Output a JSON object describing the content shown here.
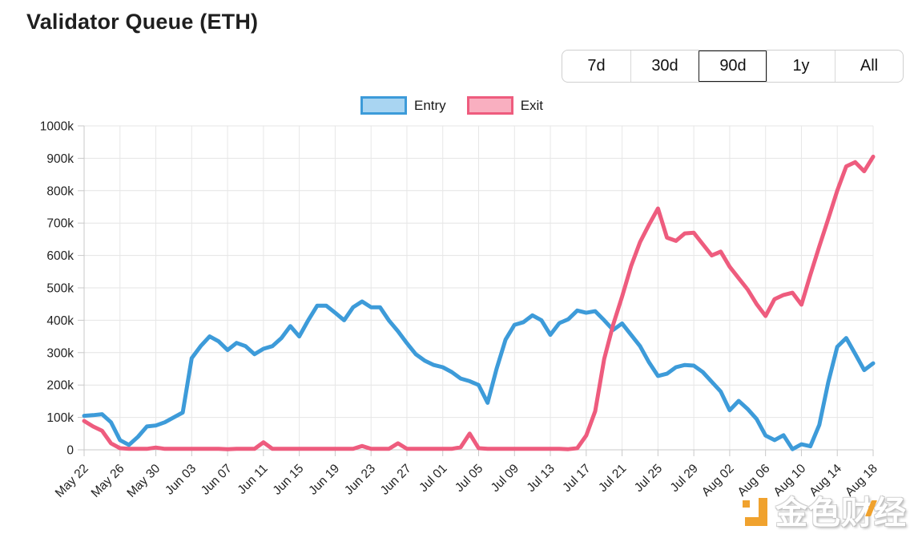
{
  "header": {
    "title": "Validator Queue (ETH)"
  },
  "range_buttons": [
    {
      "label": "7d",
      "selected": false
    },
    {
      "label": "30d",
      "selected": false
    },
    {
      "label": "90d",
      "selected": true
    },
    {
      "label": "1y",
      "selected": false
    },
    {
      "label": "All",
      "selected": false
    }
  ],
  "legend": [
    {
      "label": "Entry",
      "line_color": "#3d9bd9",
      "fill_color": "#a9d5f2"
    },
    {
      "label": "Exit",
      "line_color": "#ee5c7e",
      "fill_color": "#f9afc0"
    }
  ],
  "watermark": {
    "text": "金色财经",
    "logo": "jinse-logo-icon",
    "accent_color": "#f0a22e"
  },
  "chart_data": {
    "type": "line",
    "title": "Validator Queue (ETH)",
    "grid": true,
    "legend_position": "top-center",
    "ylim": [
      0,
      1000
    ],
    "y_tick_values": [
      0,
      100,
      200,
      300,
      400,
      500,
      600,
      700,
      800,
      900,
      1000
    ],
    "y_tick_labels": [
      "0",
      "100k",
      "200k",
      "300k",
      "400k",
      "500k",
      "600k",
      "700k",
      "800k",
      "900k",
      "1000k"
    ],
    "x_tick_labels": [
      "May 22",
      "May 26",
      "May 30",
      "Jun 03",
      "Jun 07",
      "Jun 11",
      "Jun 15",
      "Jun 19",
      "Jun 23",
      "Jun 27",
      "Jul 01",
      "Jul 05",
      "Jul 09",
      "Jul 13",
      "Jul 17",
      "Jul 21",
      "Jul 25",
      "Jul 29",
      "Aug 02",
      "Aug 06",
      "Aug 10",
      "Aug 14",
      "Aug 18"
    ],
    "x": [
      "May 22",
      "May 23",
      "May 24",
      "May 25",
      "May 26",
      "May 27",
      "May 28",
      "May 29",
      "May 30",
      "May 31",
      "Jun 01",
      "Jun 02",
      "Jun 03",
      "Jun 04",
      "Jun 05",
      "Jun 06",
      "Jun 07",
      "Jun 08",
      "Jun 09",
      "Jun 10",
      "Jun 11",
      "Jun 12",
      "Jun 13",
      "Jun 14",
      "Jun 15",
      "Jun 16",
      "Jun 17",
      "Jun 18",
      "Jun 19",
      "Jun 20",
      "Jun 21",
      "Jun 22",
      "Jun 23",
      "Jun 24",
      "Jun 25",
      "Jun 26",
      "Jun 27",
      "Jun 28",
      "Jun 29",
      "Jun 30",
      "Jul 01",
      "Jul 02",
      "Jul 03",
      "Jul 04",
      "Jul 05",
      "Jul 06",
      "Jul 07",
      "Jul 08",
      "Jul 09",
      "Jul 10",
      "Jul 11",
      "Jul 12",
      "Jul 13",
      "Jul 14",
      "Jul 15",
      "Jul 16",
      "Jul 17",
      "Jul 18",
      "Jul 19",
      "Jul 20",
      "Jul 21",
      "Jul 22",
      "Jul 23",
      "Jul 24",
      "Jul 25",
      "Jul 26",
      "Jul 27",
      "Jul 28",
      "Jul 29",
      "Jul 30",
      "Jul 31",
      "Aug 01",
      "Aug 02",
      "Aug 03",
      "Aug 04",
      "Aug 05",
      "Aug 06",
      "Aug 07",
      "Aug 08",
      "Aug 09",
      "Aug 10",
      "Aug 11",
      "Aug 12",
      "Aug 13",
      "Aug 14",
      "Aug 15",
      "Aug 16",
      "Aug 17",
      "Aug 18"
    ],
    "unit": "k",
    "series": [
      {
        "name": "Entry",
        "color": "#3d9bd9",
        "values": [
          105,
          107,
          110,
          85,
          30,
          15,
          40,
          72,
          75,
          85,
          100,
          115,
          283,
          320,
          350,
          335,
          308,
          330,
          320,
          295,
          312,
          320,
          345,
          382,
          350,
          400,
          445,
          445,
          423,
          400,
          440,
          458,
          440,
          440,
          399,
          366,
          329,
          295,
          275,
          262,
          255,
          240,
          220,
          212,
          200,
          145,
          250,
          340,
          386,
          394,
          415,
          400,
          355,
          391,
          403,
          430,
          423,
          428,
          400,
          370,
          390,
          355,
          320,
          270,
          228,
          235,
          255,
          262,
          260,
          240,
          210,
          180,
          122,
          151,
          126,
          95,
          44,
          30,
          45,
          2,
          17,
          11,
          77,
          209,
          318,
          345,
          296,
          246,
          267
        ]
      },
      {
        "name": "Exit",
        "color": "#ee5c7e",
        "values": [
          89,
          72,
          59,
          20,
          5,
          3,
          3,
          3,
          7,
          3,
          3,
          3,
          3,
          3,
          3,
          3,
          2,
          3,
          3,
          3,
          23,
          3,
          3,
          3,
          3,
          3,
          3,
          3,
          3,
          3,
          3,
          12,
          3,
          3,
          3,
          20,
          3,
          3,
          3,
          3,
          3,
          3,
          8,
          50,
          5,
          3,
          3,
          3,
          3,
          3,
          3,
          3,
          3,
          3,
          2,
          5,
          44,
          119,
          280,
          386,
          473,
          567,
          641,
          695,
          745,
          655,
          645,
          668,
          670,
          635,
          600,
          612,
          565,
          530,
          495,
          450,
          413,
          465,
          478,
          485,
          448,
          540,
          628,
          713,
          800,
          875,
          888,
          860,
          905
        ]
      }
    ]
  }
}
